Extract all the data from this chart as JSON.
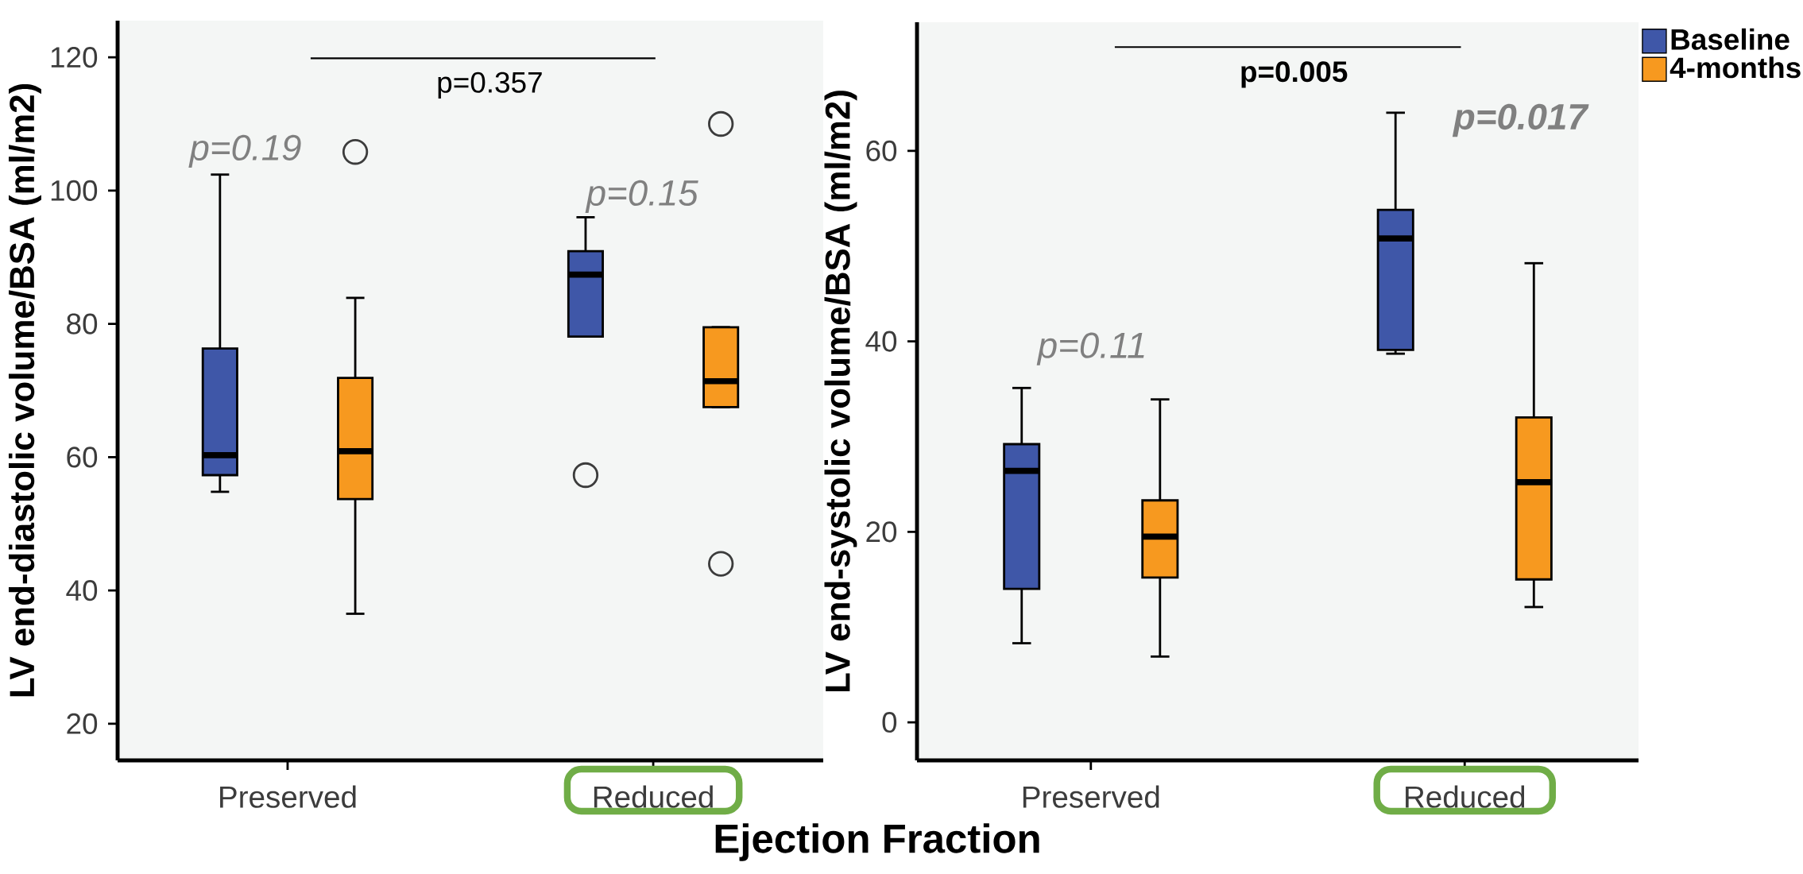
{
  "chart_data": [
    {
      "type": "box",
      "ylabel": "LV end-diastolic volume/BSA (ml/m2)",
      "xlabel": "Ejection Fraction",
      "categories": [
        "Preserved",
        "Reduced"
      ],
      "ylim": [
        14.5,
        125.5
      ],
      "yticks": [
        20,
        40,
        60,
        80,
        100,
        120
      ],
      "legend": false,
      "series": [
        {
          "color": "#3f57a8",
          "boxes": [
            {
              "low": 54.8,
              "q1": 57.3,
              "median": 60.3,
              "q3": 76.3,
              "high": 102.4
            },
            {
              "low": 78.1,
              "q1": 78.1,
              "median": 87.4,
              "q3": 90.9,
              "high": 96.0,
              "outliers": [
                57.3
              ]
            }
          ]
        },
        {
          "color": "#f7991f",
          "boxes": [
            {
              "low": 36.5,
              "q1": 53.7,
              "median": 60.9,
              "q3": 71.9,
              "high": 83.9,
              "outliers": [
                105.8
              ]
            },
            {
              "low": 67.5,
              "q1": 67.5,
              "median": 71.4,
              "q3": 79.5,
              "high": 79.5,
              "outliers": [
                110.0,
                44.0
              ]
            }
          ]
        }
      ],
      "annotations": [
        "p=0.357",
        "p=0.19",
        "p=0.15"
      ]
    },
    {
      "type": "box",
      "ylabel": "LV end-systolic volume/BSA (ml/m2)",
      "categories": [
        "Preserved",
        "Reduced"
      ],
      "ylim": [
        -4,
        73.5
      ],
      "yticks": [
        0,
        20,
        40,
        60
      ],
      "legend": "top right",
      "series": [
        {
          "name": "Baseline",
          "color": "#3f57a8",
          "boxes": [
            {
              "low": 8.3,
              "q1": 14.0,
              "median": 26.4,
              "q3": 29.2,
              "high": 35.1
            },
            {
              "low": 38.7,
              "q1": 39.1,
              "median": 50.8,
              "q3": 53.8,
              "high": 64.0
            }
          ]
        },
        {
          "name": "4-months",
          "color": "#f7991f",
          "boxes": [
            {
              "low": 6.9,
              "q1": 15.2,
              "median": 19.5,
              "q3": 23.3,
              "high": 33.9
            },
            {
              "low": 12.1,
              "q1": 15.0,
              "median": 25.2,
              "q3": 32.0,
              "high": 48.2
            }
          ]
        }
      ],
      "annotations": [
        "p=0.005",
        "p=0.11",
        "p=0.017"
      ]
    }
  ]
}
